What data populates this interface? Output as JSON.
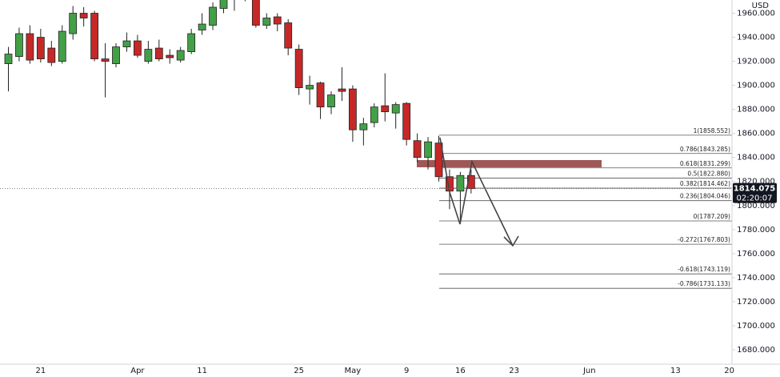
{
  "chart_data": {
    "type": "candlestick",
    "currency": "USD",
    "categories": [
      null,
      null,
      null,
      "21",
      null,
      null,
      null,
      null,
      null,
      null,
      null,
      null,
      "Apr",
      null,
      null,
      null,
      null,
      null,
      "11",
      null,
      null,
      null,
      null,
      null,
      null,
      null,
      null,
      "25",
      null,
      null,
      null,
      null,
      "May",
      null,
      null,
      null,
      null,
      "9",
      null,
      null,
      null,
      null,
      "16",
      null,
      null,
      null,
      null,
      "23",
      null,
      null,
      null,
      null,
      null,
      null,
      "Jun",
      null,
      null,
      null,
      null,
      null,
      null,
      null,
      "13",
      null,
      null,
      null,
      null,
      "20"
    ],
    "open": [
      1918,
      1924,
      1943,
      1940,
      1931,
      1920,
      1943,
      1960,
      1960,
      1922,
      1918,
      1932,
      1937,
      1920,
      1931,
      1925,
      1921,
      1928,
      1946,
      1950,
      1964,
      1972,
      1977,
      1980,
      1950,
      1957,
      1952,
      1930,
      1897,
      1902,
      1882,
      1897,
      1897,
      1863,
      1869,
      1883,
      1877,
      1885,
      1854,
      1840,
      1852,
      1824,
      1812,
      1825,
      null,
      null,
      null,
      null,
      null,
      null,
      null,
      null,
      null,
      null,
      null,
      null,
      null,
      null,
      null,
      null,
      null,
      null,
      null,
      null,
      null,
      null,
      null,
      null
    ],
    "high": [
      1932,
      1948,
      1950,
      1947,
      1937,
      1950,
      1966,
      1965,
      1962,
      1935,
      1935,
      1944,
      1942,
      1937,
      1938,
      1930,
      1932,
      1947,
      1960,
      1969,
      1978,
      1982,
      1998,
      1982,
      1960,
      1960,
      1955,
      1934,
      1908,
      1903,
      1895,
      1915,
      1900,
      1873,
      1885,
      1910,
      1886,
      1886,
      1860,
      1857,
      1858,
      1830,
      1828,
      1830,
      null,
      null,
      null,
      null,
      null,
      null,
      null,
      null,
      null,
      null,
      null,
      null,
      null,
      null,
      null,
      null,
      null,
      null,
      null,
      null,
      null,
      null,
      null,
      null
    ],
    "low": [
      1895,
      1920,
      1918,
      1919,
      1916,
      1918,
      1938,
      1949,
      1920,
      1890,
      1915,
      1928,
      1923,
      1918,
      1920,
      1918,
      1919,
      1926,
      1942,
      1946,
      1960,
      1962,
      1970,
      1948,
      1947,
      1945,
      1925,
      1892,
      1884,
      1872,
      1876,
      1887,
      1853,
      1850,
      1865,
      1870,
      1864,
      1850,
      1836,
      1830,
      1820,
      1797,
      1787,
      1810,
      null,
      null,
      null,
      null,
      null,
      null,
      null,
      null,
      null,
      null,
      null,
      null,
      null,
      null,
      null,
      null,
      null,
      null,
      null,
      null,
      null,
      null,
      null,
      null
    ],
    "close": [
      1926,
      1943,
      1921,
      1922,
      1919,
      1945,
      1960,
      1956,
      1922,
      1920,
      1932,
      1937,
      1925,
      1930,
      1922,
      1923,
      1929,
      1943,
      1951,
      1965,
      1972,
      1975,
      1980,
      1950,
      1956,
      1951,
      1931,
      1898,
      1900,
      1882,
      1892,
      1895,
      1863,
      1868,
      1882,
      1878,
      1884,
      1855,
      1840,
      1853,
      1824,
      1812,
      1825,
      1814.075,
      null,
      null,
      null,
      null,
      null,
      null,
      null,
      null,
      null,
      null,
      null,
      null,
      null,
      null,
      null,
      null,
      null,
      null,
      null,
      null,
      null,
      null,
      null,
      null
    ],
    "up_color": "#43a047",
    "down_color": "#c62828",
    "ylim": [
      1668,
      1971
    ],
    "yticks": [
      {
        "value": 1680,
        "label": "1680.000"
      },
      {
        "value": 1700,
        "label": "1700.000"
      },
      {
        "value": 1720,
        "label": "1720.000"
      },
      {
        "value": 1740,
        "label": "1740.000"
      },
      {
        "value": 1760,
        "label": "1760.000"
      },
      {
        "value": 1780,
        "label": "1780.000"
      },
      {
        "value": 1800,
        "label": "1800.000"
      },
      {
        "value": 1820,
        "label": "1820.000"
      },
      {
        "value": 1840,
        "label": "1840.000"
      },
      {
        "value": 1860,
        "label": "1860.000"
      },
      {
        "value": 1880,
        "label": "1880.000"
      },
      {
        "value": 1900,
        "label": "1900.000"
      },
      {
        "value": 1920,
        "label": "1920.000"
      },
      {
        "value": 1940,
        "label": "1940.000"
      },
      {
        "value": 1960,
        "label": "1960.000"
      }
    ],
    "grid": false,
    "current_price": 1814.075,
    "countdown": "02:20:07",
    "fib_levels": [
      {
        "value": 1858.552,
        "label": "1(1858.552)"
      },
      {
        "value": 1843.285,
        "label": "0.786(1843.285)"
      },
      {
        "value": 1831.299,
        "label": "0.618(1831.299)"
      },
      {
        "value": 1822.88,
        "label": "0.5(1822.880)"
      },
      {
        "value": 1814.462,
        "label": "0.382(1814.462)"
      },
      {
        "value": 1804.046,
        "label": "0.236(1804.046)"
      },
      {
        "value": 1787.209,
        "label": "0(1787.209)"
      },
      {
        "value": 1767.803,
        "label": "-0.272(1767.803)"
      },
      {
        "value": 1743.119,
        "label": "-0.618(1743.119)"
      },
      {
        "value": 1731.133,
        "label": "-0.786(1731.133)"
      }
    ]
  }
}
